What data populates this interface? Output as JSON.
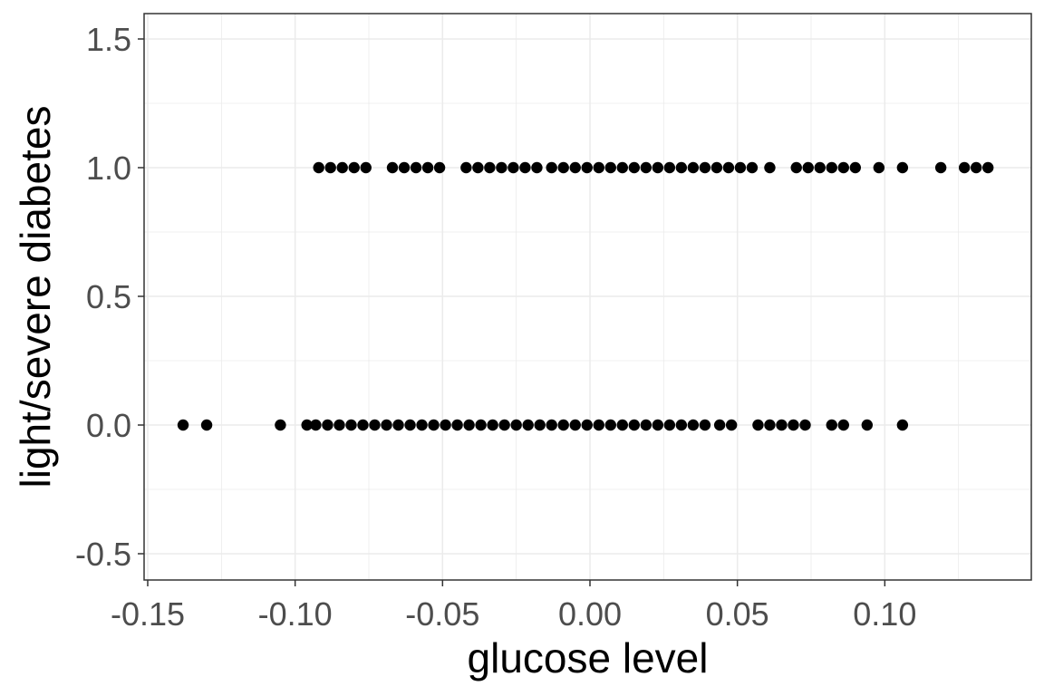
{
  "chart_data": {
    "type": "scatter",
    "title": "",
    "xlabel": "glucose level",
    "ylabel": "light/severe diabetes",
    "xlim": [
      -0.15,
      0.15
    ],
    "ylim": [
      -0.55,
      1.6
    ],
    "xticks": [
      -0.15,
      -0.1,
      -0.05,
      0.0,
      0.05,
      0.1
    ],
    "xtick_labels": [
      "-0.15",
      "-0.10",
      "-0.05",
      "0.00",
      "0.05",
      "0.10"
    ],
    "yticks": [
      -0.5,
      0.0,
      0.5,
      1.0,
      1.5
    ],
    "ytick_labels": [
      "-0.5",
      "0.0",
      "0.5",
      "1.0",
      "1.5"
    ],
    "grid": true,
    "point_color": "#000000",
    "panel_border_color": "#333333",
    "grid_color": "#ebebeb",
    "series": [
      {
        "y": 1,
        "x": [
          -0.092,
          -0.088,
          -0.084,
          -0.08,
          -0.076,
          -0.067,
          -0.063,
          -0.059,
          -0.055,
          -0.051,
          -0.042,
          -0.038,
          -0.034,
          -0.03,
          -0.026,
          -0.022,
          -0.018,
          -0.013,
          -0.009,
          -0.005,
          -0.001,
          0.003,
          0.007,
          0.011,
          0.015,
          0.019,
          0.023,
          0.027,
          0.031,
          0.035,
          0.039,
          0.043,
          0.047,
          0.051,
          0.055,
          0.061,
          0.07,
          0.074,
          0.078,
          0.082,
          0.086,
          0.09,
          0.098,
          0.106,
          0.119,
          0.127,
          0.131,
          0.135
        ]
      },
      {
        "y": 0,
        "x": [
          -0.138,
          -0.13,
          -0.105,
          -0.096,
          -0.093,
          -0.089,
          -0.085,
          -0.081,
          -0.077,
          -0.073,
          -0.069,
          -0.065,
          -0.061,
          -0.057,
          -0.053,
          -0.049,
          -0.045,
          -0.041,
          -0.037,
          -0.033,
          -0.029,
          -0.025,
          -0.021,
          -0.017,
          -0.013,
          -0.009,
          -0.005,
          -0.001,
          0.003,
          0.007,
          0.011,
          0.015,
          0.019,
          0.023,
          0.027,
          0.031,
          0.035,
          0.039,
          0.044,
          0.048,
          0.057,
          0.061,
          0.065,
          0.069,
          0.073,
          0.082,
          0.086,
          0.094,
          0.106
        ]
      }
    ]
  }
}
